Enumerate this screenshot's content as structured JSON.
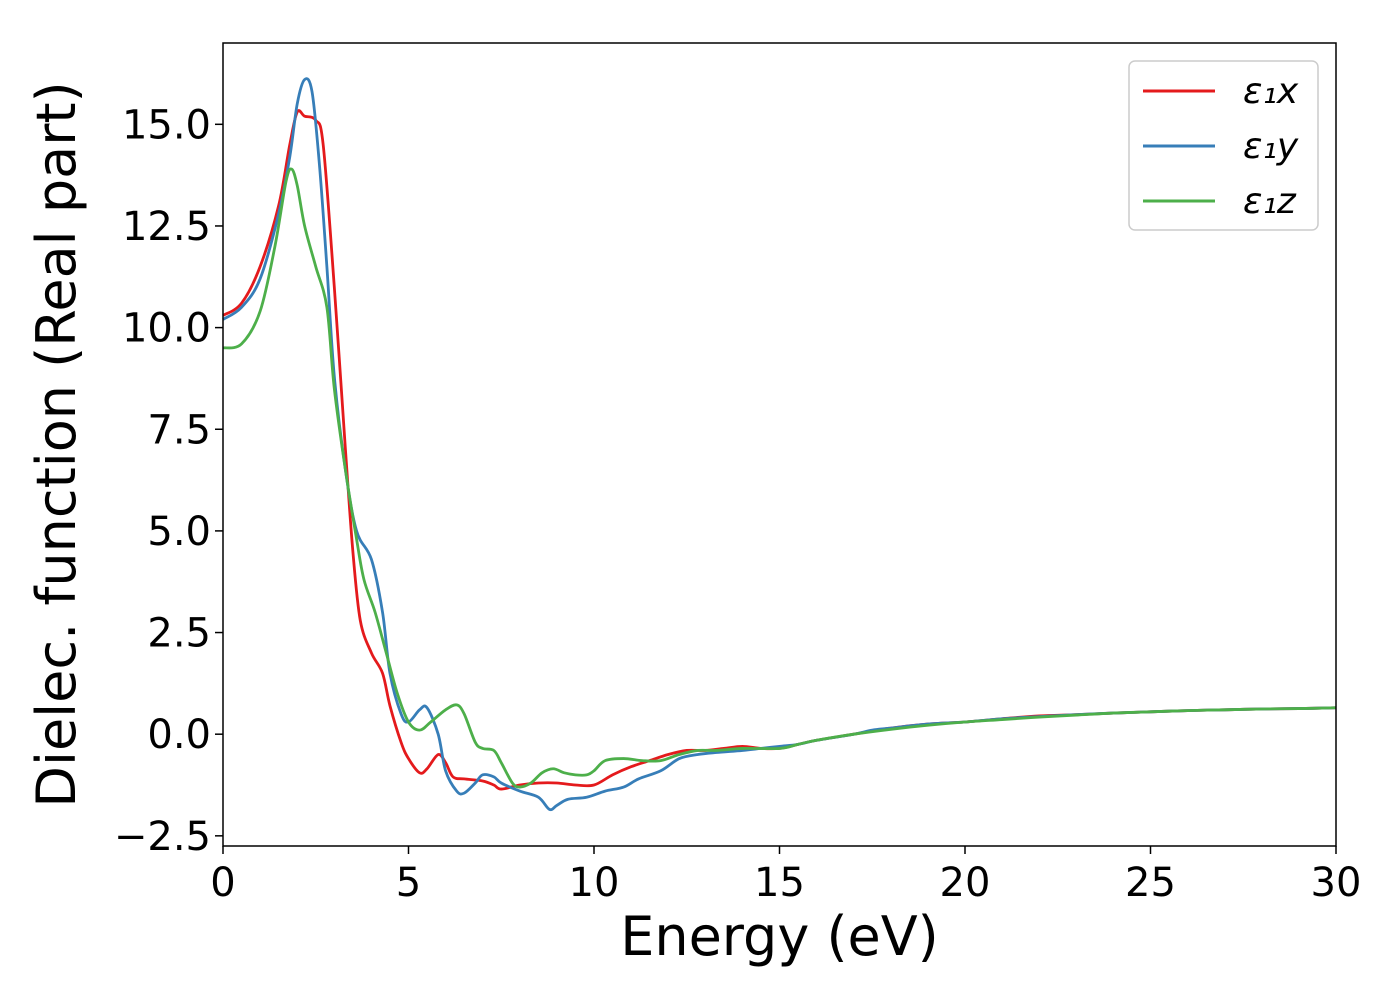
{
  "chart_data": {
    "type": "line",
    "title": "",
    "xlabel": "Energy (eV)",
    "ylabel": "Dielec. function (Real part)",
    "xlim": [
      0,
      30
    ],
    "ylim": [
      -2.75,
      17.0
    ],
    "x_ticks": [
      "0",
      "5",
      "10",
      "15",
      "20",
      "25",
      "30"
    ],
    "x_tick_values": [
      0,
      5,
      10,
      15,
      20,
      25,
      30
    ],
    "y_ticks": [
      "−2.5",
      "0.0",
      "2.5",
      "5.0",
      "7.5",
      "10.0",
      "12.5",
      "15.0"
    ],
    "y_tick_values": [
      -2.5,
      0,
      2.5,
      5,
      7.5,
      10,
      12.5,
      15
    ],
    "grid": false,
    "legend_position": "top-right",
    "series": [
      {
        "name": "ε₁x",
        "color": "#e41a1c",
        "points": [
          [
            0,
            10.3
          ],
          [
            0.5,
            10.6
          ],
          [
            1.0,
            11.5
          ],
          [
            1.5,
            13.0
          ],
          [
            1.8,
            14.5
          ],
          [
            2.0,
            15.3
          ],
          [
            2.2,
            15.2
          ],
          [
            2.5,
            15.1
          ],
          [
            2.7,
            14.5
          ],
          [
            3.0,
            11.0
          ],
          [
            3.3,
            7.0
          ],
          [
            3.5,
            4.5
          ],
          [
            3.7,
            2.8
          ],
          [
            4.0,
            2.0
          ],
          [
            4.3,
            1.5
          ],
          [
            4.5,
            0.7
          ],
          [
            4.8,
            -0.2
          ],
          [
            5.0,
            -0.6
          ],
          [
            5.3,
            -0.95
          ],
          [
            5.5,
            -0.85
          ],
          [
            5.8,
            -0.5
          ],
          [
            6.0,
            -0.7
          ],
          [
            6.2,
            -1.05
          ],
          [
            6.5,
            -1.1
          ],
          [
            7.0,
            -1.15
          ],
          [
            7.3,
            -1.25
          ],
          [
            7.5,
            -1.35
          ],
          [
            8.0,
            -1.25
          ],
          [
            8.5,
            -1.2
          ],
          [
            9.0,
            -1.2
          ],
          [
            9.5,
            -1.25
          ],
          [
            10.0,
            -1.25
          ],
          [
            10.5,
            -1.0
          ],
          [
            11.0,
            -0.8
          ],
          [
            11.5,
            -0.65
          ],
          [
            12.0,
            -0.5
          ],
          [
            12.5,
            -0.4
          ],
          [
            13.0,
            -0.4
          ],
          [
            13.5,
            -0.35
          ],
          [
            14.0,
            -0.3
          ],
          [
            14.5,
            -0.35
          ],
          [
            15.0,
            -0.35
          ],
          [
            15.5,
            -0.25
          ],
          [
            16.0,
            -0.15
          ],
          [
            17.0,
            0.0
          ],
          [
            18.0,
            0.15
          ],
          [
            19.0,
            0.25
          ],
          [
            20.0,
            0.3
          ],
          [
            21.0,
            0.38
          ],
          [
            22.0,
            0.45
          ],
          [
            23.0,
            0.48
          ],
          [
            24.0,
            0.52
          ],
          [
            25.0,
            0.55
          ],
          [
            26.0,
            0.58
          ],
          [
            27.0,
            0.6
          ],
          [
            28.0,
            0.62
          ],
          [
            29.0,
            0.63
          ],
          [
            30.0,
            0.65
          ]
        ]
      },
      {
        "name": "ε₁y",
        "color": "#377eb8",
        "points": [
          [
            0,
            10.2
          ],
          [
            0.5,
            10.5
          ],
          [
            1.0,
            11.2
          ],
          [
            1.5,
            12.8
          ],
          [
            1.8,
            14.2
          ],
          [
            2.0,
            15.5
          ],
          [
            2.2,
            16.1
          ],
          [
            2.4,
            15.8
          ],
          [
            2.6,
            14.0
          ],
          [
            2.8,
            11.5
          ],
          [
            3.0,
            8.8
          ],
          [
            3.3,
            6.5
          ],
          [
            3.6,
            5.0
          ],
          [
            4.0,
            4.3
          ],
          [
            4.3,
            3.0
          ],
          [
            4.5,
            1.5
          ],
          [
            4.8,
            0.5
          ],
          [
            5.0,
            0.3
          ],
          [
            5.3,
            0.6
          ],
          [
            5.5,
            0.65
          ],
          [
            5.8,
            0.0
          ],
          [
            6.0,
            -0.9
          ],
          [
            6.3,
            -1.4
          ],
          [
            6.5,
            -1.45
          ],
          [
            6.8,
            -1.2
          ],
          [
            7.0,
            -1.0
          ],
          [
            7.3,
            -1.05
          ],
          [
            7.5,
            -1.2
          ],
          [
            8.0,
            -1.4
          ],
          [
            8.5,
            -1.55
          ],
          [
            8.8,
            -1.85
          ],
          [
            9.0,
            -1.75
          ],
          [
            9.3,
            -1.6
          ],
          [
            9.8,
            -1.55
          ],
          [
            10.3,
            -1.4
          ],
          [
            10.8,
            -1.3
          ],
          [
            11.2,
            -1.1
          ],
          [
            11.8,
            -0.9
          ],
          [
            12.3,
            -0.6
          ],
          [
            12.8,
            -0.5
          ],
          [
            13.3,
            -0.45
          ],
          [
            14.0,
            -0.4
          ],
          [
            14.5,
            -0.35
          ],
          [
            15.0,
            -0.3
          ],
          [
            15.5,
            -0.25
          ],
          [
            16.0,
            -0.15
          ],
          [
            17.0,
            0.0
          ],
          [
            17.5,
            0.1
          ],
          [
            18.0,
            0.15
          ],
          [
            19.0,
            0.25
          ],
          [
            20.0,
            0.3
          ],
          [
            21.0,
            0.38
          ],
          [
            22.0,
            0.43
          ],
          [
            23.0,
            0.48
          ],
          [
            24.0,
            0.52
          ],
          [
            25.0,
            0.55
          ],
          [
            26.0,
            0.58
          ],
          [
            27.0,
            0.6
          ],
          [
            28.0,
            0.62
          ],
          [
            29.0,
            0.63
          ],
          [
            30.0,
            0.65
          ]
        ]
      },
      {
        "name": "ε₁z",
        "color": "#4daf4a",
        "points": [
          [
            0,
            9.5
          ],
          [
            0.5,
            9.6
          ],
          [
            1.0,
            10.4
          ],
          [
            1.4,
            12.0
          ],
          [
            1.7,
            13.6
          ],
          [
            1.85,
            13.9
          ],
          [
            2.0,
            13.5
          ],
          [
            2.2,
            12.5
          ],
          [
            2.5,
            11.5
          ],
          [
            2.8,
            10.5
          ],
          [
            3.0,
            8.5
          ],
          [
            3.3,
            6.5
          ],
          [
            3.6,
            4.8
          ],
          [
            3.8,
            3.8
          ],
          [
            4.1,
            3.0
          ],
          [
            4.4,
            2.0
          ],
          [
            4.7,
            1.0
          ],
          [
            5.0,
            0.3
          ],
          [
            5.3,
            0.1
          ],
          [
            5.6,
            0.3
          ],
          [
            6.0,
            0.6
          ],
          [
            6.3,
            0.72
          ],
          [
            6.5,
            0.5
          ],
          [
            6.8,
            -0.2
          ],
          [
            7.0,
            -0.35
          ],
          [
            7.3,
            -0.4
          ],
          [
            7.5,
            -0.7
          ],
          [
            7.8,
            -1.2
          ],
          [
            8.0,
            -1.3
          ],
          [
            8.3,
            -1.2
          ],
          [
            8.6,
            -0.95
          ],
          [
            8.9,
            -0.85
          ],
          [
            9.2,
            -0.95
          ],
          [
            9.5,
            -1.0
          ],
          [
            9.8,
            -1.0
          ],
          [
            10.0,
            -0.9
          ],
          [
            10.3,
            -0.65
          ],
          [
            10.8,
            -0.6
          ],
          [
            11.3,
            -0.65
          ],
          [
            11.8,
            -0.65
          ],
          [
            12.3,
            -0.5
          ],
          [
            12.8,
            -0.4
          ],
          [
            13.3,
            -0.4
          ],
          [
            14.0,
            -0.35
          ],
          [
            15.0,
            -0.35
          ],
          [
            15.5,
            -0.25
          ],
          [
            16.0,
            -0.15
          ],
          [
            17.0,
            0.0
          ],
          [
            18.0,
            0.12
          ],
          [
            19.0,
            0.22
          ],
          [
            20.0,
            0.3
          ],
          [
            21.0,
            0.36
          ],
          [
            22.0,
            0.42
          ],
          [
            23.0,
            0.47
          ],
          [
            24.0,
            0.52
          ],
          [
            25.0,
            0.55
          ],
          [
            26.0,
            0.58
          ],
          [
            27.0,
            0.6
          ],
          [
            28.0,
            0.62
          ],
          [
            29.0,
            0.63
          ],
          [
            30.0,
            0.65
          ]
        ]
      }
    ]
  }
}
